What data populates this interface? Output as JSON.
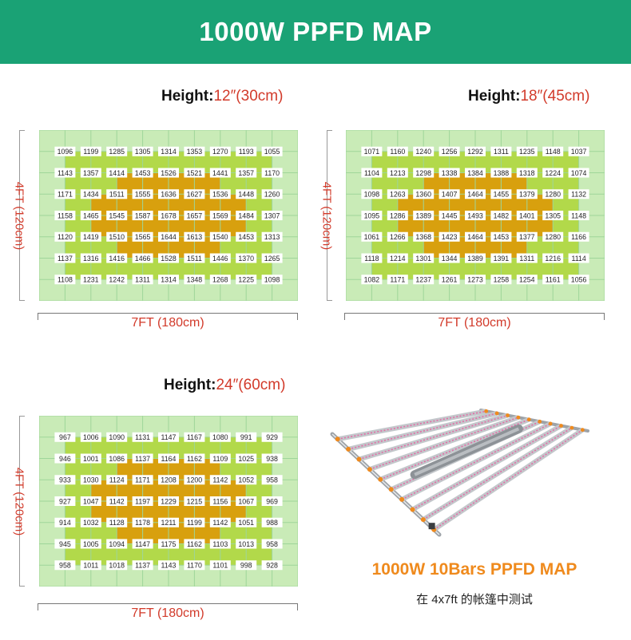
{
  "banner": {
    "title": "1000W PPFD MAP"
  },
  "colors": {
    "banner": "#1aa275",
    "accent_red": "#d23a2a",
    "caption_orange": "#ef8a1d",
    "zone_outer": "#c9ebb7",
    "zone_mid": "#b2d94a",
    "zone_core": "#d8a00e",
    "grid_line": "#9fd69a"
  },
  "chart_data": [
    {
      "type": "heatmap",
      "height_key": "Height:",
      "height_value": "12″(30cm)",
      "xlabel": "7FT (180cm)",
      "ylabel": "4FT (120cm)",
      "values": [
        [
          1096,
          1199,
          1285,
          1305,
          1314,
          1353,
          1270,
          1193,
          1055
        ],
        [
          1143,
          1357,
          1414,
          1453,
          1526,
          1521,
          1441,
          1357,
          1170
        ],
        [
          1171,
          1434,
          1511,
          1555,
          1636,
          1627,
          1536,
          1448,
          1260
        ],
        [
          1158,
          1465,
          1545,
          1587,
          1678,
          1657,
          1569,
          1484,
          1307
        ],
        [
          1120,
          1419,
          1510,
          1565,
          1644,
          1613,
          1540,
          1453,
          1313
        ],
        [
          1137,
          1316,
          1416,
          1466,
          1528,
          1511,
          1446,
          1370,
          1265
        ],
        [
          1108,
          1231,
          1242,
          1311,
          1314,
          1348,
          1268,
          1225,
          1098
        ]
      ]
    },
    {
      "type": "heatmap",
      "height_key": "Height:",
      "height_value": "18″(45cm)",
      "xlabel": "7FT (180cm)",
      "ylabel": "4FT (120cm)",
      "values": [
        [
          1071,
          1160,
          1240,
          1256,
          1292,
          1311,
          1235,
          1148,
          1037
        ],
        [
          1104,
          1213,
          1298,
          1338,
          1384,
          1388,
          1318,
          1224,
          1074
        ],
        [
          1098,
          1263,
          1360,
          1407,
          1464,
          1455,
          1379,
          1280,
          1132
        ],
        [
          1095,
          1286,
          1389,
          1445,
          1493,
          1482,
          1401,
          1305,
          1148
        ],
        [
          1061,
          1266,
          1368,
          1423,
          1464,
          1453,
          1377,
          1280,
          1166
        ],
        [
          1118,
          1214,
          1301,
          1344,
          1389,
          1391,
          1311,
          1216,
          1114
        ],
        [
          1082,
          1171,
          1237,
          1261,
          1273,
          1258,
          1254,
          1161,
          1056
        ]
      ]
    },
    {
      "type": "heatmap",
      "height_key": "Height:",
      "height_value": "24″(60cm)",
      "xlabel": "7FT (180cm)",
      "ylabel": "4FT (120cm)",
      "values": [
        [
          967,
          1006,
          1090,
          1131,
          1147,
          1167,
          1080,
          991,
          929
        ],
        [
          946,
          1001,
          1086,
          1137,
          1164,
          1162,
          1109,
          1025,
          938
        ],
        [
          933,
          1030,
          1124,
          1171,
          1208,
          1200,
          1142,
          1052,
          958
        ],
        [
          927,
          1047,
          1142,
          1197,
          1229,
          1215,
          1156,
          1067,
          969
        ],
        [
          914,
          1032,
          1128,
          1178,
          1211,
          1199,
          1142,
          1051,
          988
        ],
        [
          945,
          1005,
          1094,
          1147,
          1175,
          1162,
          1103,
          1013,
          958
        ],
        [
          958,
          1011,
          1018,
          1137,
          1143,
          1170,
          1101,
          998,
          928
        ]
      ]
    }
  ],
  "fixture": {
    "bar_count": 10,
    "caption": "1000W 10Bars PPFD MAP",
    "subcaption": "在 4x7ft 的帐篷中测试"
  }
}
